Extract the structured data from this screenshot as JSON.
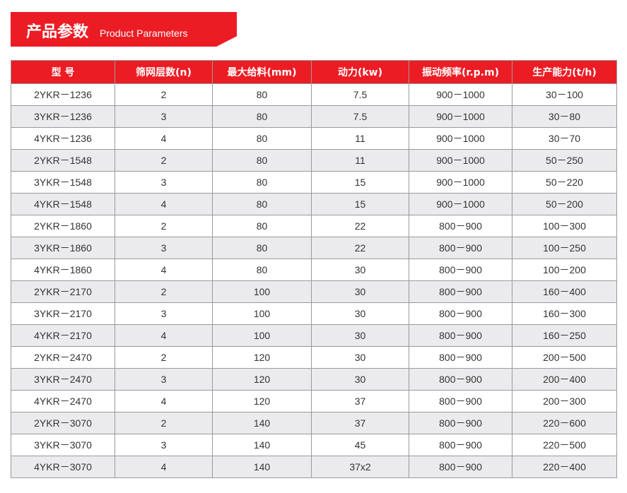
{
  "banner": {
    "title_cn": "产品参数",
    "title_en": "Product Parameters"
  },
  "table": {
    "headers": [
      "型 号",
      "筛网层数(n)",
      "最大给料(mm)",
      "动力(kw)",
      "振动频率(r.p.m)",
      "生产能力(t/h)"
    ],
    "rows": [
      [
        "2YKR－1236",
        "2",
        "80",
        "7.5",
        "900－1000",
        "30－100"
      ],
      [
        "3YKR－1236",
        "3",
        "80",
        "7.5",
        "900－1000",
        "30－80"
      ],
      [
        "4YKR－1236",
        "4",
        "80",
        "11",
        "900－1000",
        "30－70"
      ],
      [
        "2YKR－1548",
        "2",
        "80",
        "11",
        "900－1000",
        "50－250"
      ],
      [
        "3YKR－1548",
        "3",
        "80",
        "15",
        "900－1000",
        "50－220"
      ],
      [
        "4YKR－1548",
        "4",
        "80",
        "15",
        "900－1000",
        "50－200"
      ],
      [
        "2YKR－1860",
        "2",
        "80",
        "22",
        "800－900",
        "100－300"
      ],
      [
        "3YKR－1860",
        "3",
        "80",
        "22",
        "800－900",
        "100－250"
      ],
      [
        "4YKR－1860",
        "4",
        "80",
        "30",
        "800－900",
        "100－200"
      ],
      [
        "2YKR－2170",
        "2",
        "100",
        "30",
        "800－900",
        "160－400"
      ],
      [
        "3YKR－2170",
        "3",
        "100",
        "30",
        "800－900",
        "160－300"
      ],
      [
        "4YKR－2170",
        "4",
        "100",
        "30",
        "800－900",
        "160－250"
      ],
      [
        "2YKR－2470",
        "2",
        "120",
        "30",
        "800－900",
        "200－500"
      ],
      [
        "3YKR－2470",
        "3",
        "120",
        "30",
        "800－900",
        "200－400"
      ],
      [
        "4YKR－2470",
        "4",
        "120",
        "37",
        "800－900",
        "200－300"
      ],
      [
        "2YKR－3070",
        "2",
        "140",
        "37",
        "800－900",
        "220－600"
      ],
      [
        "3YKR－3070",
        "3",
        "140",
        "45",
        "800－900",
        "220－500"
      ],
      [
        "4YKR－3070",
        "4",
        "140",
        "37x2",
        "800－900",
        "220－400"
      ]
    ]
  },
  "colors": {
    "accent": "#ec1c24",
    "alt_row": "#ebebed"
  }
}
